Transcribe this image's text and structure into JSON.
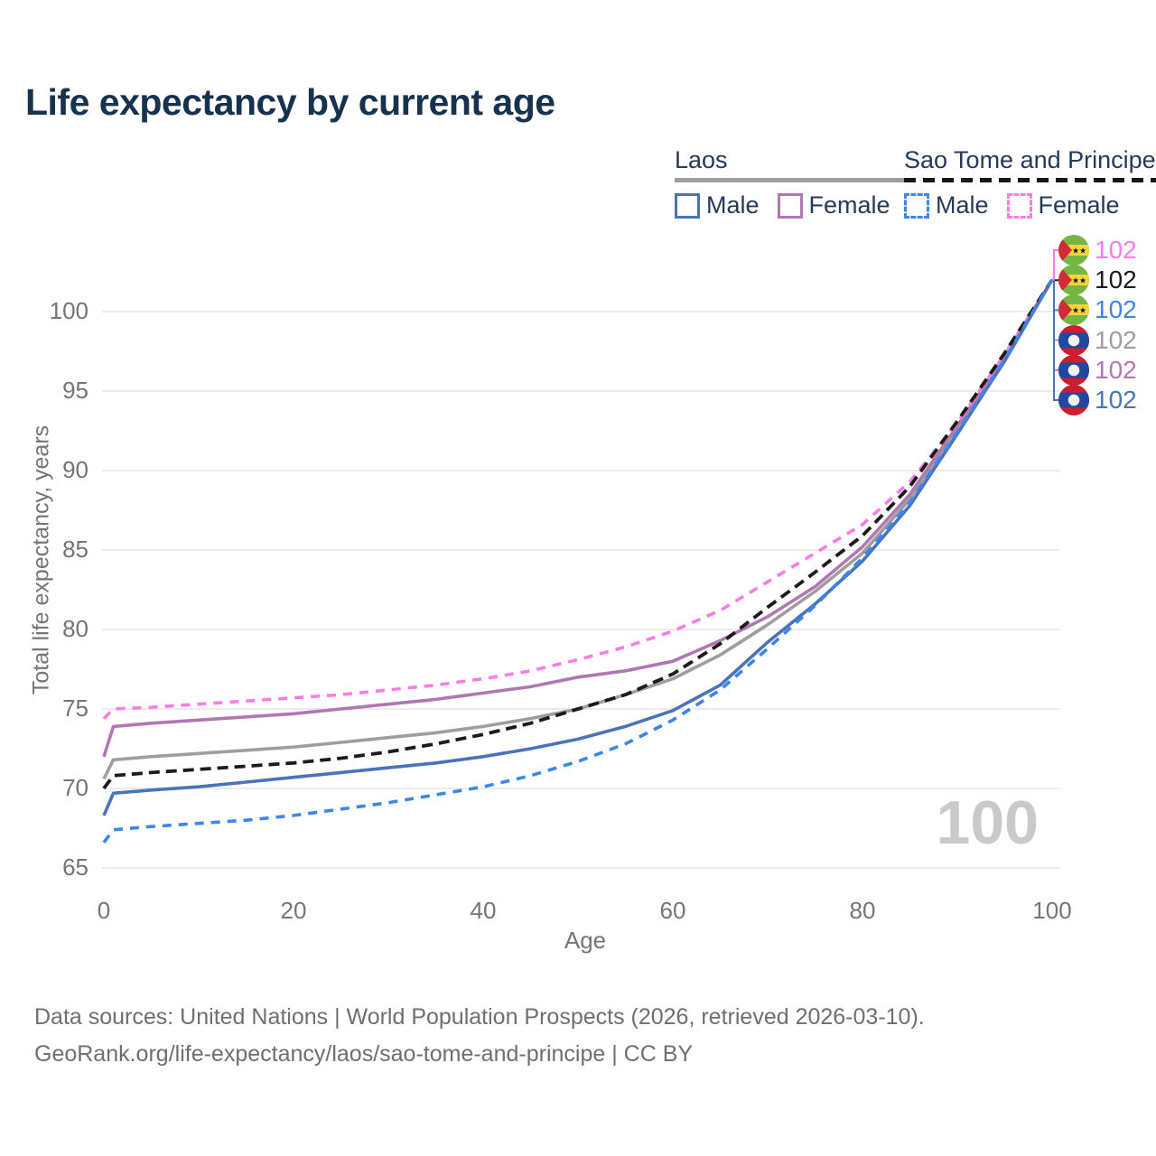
{
  "title": "Life expectancy by current age",
  "watermark": "100",
  "legend": {
    "laos": {
      "title": "Laos",
      "male_label": "Male",
      "female_label": "Female"
    },
    "sao_tome": {
      "title": "Sao Tome and Principe",
      "male_label": "Male",
      "female_label": "Female"
    }
  },
  "footer": {
    "line1": "Data sources: United Nations | World Population Prospects (2026, retrieved 2026-03-10).",
    "line2": "GeoRank.org/life-expectancy/laos/sao-tome-and-principe | CC BY"
  },
  "colors": {
    "laos_male": "#4a73b8",
    "laos_female": "#b077b3",
    "laos_all": "#9e9e9e",
    "stp_male": "#3d85e8",
    "stp_female": "#fb7ce2",
    "stp_all": "#1b1b1b",
    "title_navy": "#17324f",
    "tick_gray": "#757575",
    "watermark_gray": "#c9c9c9"
  },
  "chart_data": {
    "type": "line",
    "title": "Life expectancy by current age",
    "xlabel": "Age",
    "ylabel": "Total life expectancy, years",
    "x_ticks": [
      0,
      20,
      40,
      60,
      80,
      100
    ],
    "y_ticks": [
      65,
      70,
      75,
      80,
      85,
      90,
      95,
      100
    ],
    "xlim": [
      0,
      100
    ],
    "ylim": [
      65,
      100
    ],
    "grid": "horizontal-only",
    "legend_position": "top-right",
    "ages": [
      0,
      1,
      5,
      10,
      15,
      20,
      25,
      30,
      35,
      40,
      45,
      50,
      55,
      60,
      65,
      70,
      75,
      80,
      85,
      90,
      95,
      100
    ],
    "series": [
      {
        "id": "stp_female",
        "country": "Sao Tome and Principe",
        "sex": "Female",
        "style": "dashed",
        "color_key": "stp_female",
        "end_value": 102,
        "values": [
          74.4,
          75.0,
          75.1,
          75.3,
          75.5,
          75.7,
          75.9,
          76.2,
          76.5,
          76.9,
          77.4,
          78.1,
          78.9,
          79.9,
          81.2,
          83.0,
          84.8,
          86.6,
          89.3,
          93.0,
          97.3,
          102
        ]
      },
      {
        "id": "stp_all",
        "country": "Sao Tome and Principe",
        "sex": "Both sexes",
        "style": "dashed",
        "color_key": "stp_all",
        "end_value": 102,
        "values": [
          70.0,
          70.8,
          71.0,
          71.2,
          71.4,
          71.6,
          71.9,
          72.3,
          72.8,
          73.4,
          74.1,
          75.0,
          75.9,
          77.2,
          79.1,
          81.4,
          83.6,
          85.9,
          89.0,
          93.1,
          97.4,
          102
        ]
      },
      {
        "id": "stp_male",
        "country": "Sao Tome and Principe",
        "sex": "Male",
        "style": "dashed",
        "color_key": "stp_male",
        "end_value": 102,
        "values": [
          66.6,
          67.4,
          67.6,
          67.8,
          68.0,
          68.3,
          68.7,
          69.1,
          69.6,
          70.1,
          70.8,
          71.7,
          72.8,
          74.3,
          76.2,
          78.8,
          81.5,
          84.5,
          88.0,
          92.4,
          97.0,
          102
        ]
      },
      {
        "id": "laos_all",
        "country": "Laos",
        "sex": "Both sexes",
        "style": "solid",
        "color_key": "laos_all",
        "end_value": 102,
        "values": [
          70.6,
          71.8,
          72.0,
          72.2,
          72.4,
          72.6,
          72.9,
          73.2,
          73.5,
          73.9,
          74.4,
          75.0,
          75.9,
          76.9,
          78.4,
          80.3,
          82.4,
          84.8,
          88.2,
          92.6,
          97.1,
          102
        ]
      },
      {
        "id": "laos_female",
        "country": "Laos",
        "sex": "Female",
        "style": "solid",
        "color_key": "laos_female",
        "end_value": 102,
        "values": [
          72.0,
          73.9,
          74.1,
          74.3,
          74.5,
          74.7,
          75.0,
          75.3,
          75.6,
          76.0,
          76.4,
          77.0,
          77.4,
          78.0,
          79.3,
          80.8,
          82.7,
          85.2,
          88.5,
          92.8,
          97.2,
          102
        ]
      },
      {
        "id": "laos_male",
        "country": "Laos",
        "sex": "Male",
        "style": "solid",
        "color_key": "laos_male",
        "end_value": 102,
        "values": [
          68.3,
          69.7,
          69.9,
          70.1,
          70.4,
          70.7,
          71.0,
          71.3,
          71.6,
          72.0,
          72.5,
          73.1,
          73.9,
          74.9,
          76.5,
          79.2,
          81.6,
          84.3,
          87.8,
          92.3,
          96.9,
          102
        ]
      }
    ],
    "end_labels": [
      {
        "flag": "sao-tome",
        "value": "102",
        "color_key": "stp_female"
      },
      {
        "flag": "sao-tome",
        "value": "102",
        "color_key": "stp_all"
      },
      {
        "flag": "sao-tome",
        "value": "102",
        "color_key": "stp_male"
      },
      {
        "flag": "laos",
        "value": "102",
        "color_key": "laos_all"
      },
      {
        "flag": "laos",
        "value": "102",
        "color_key": "laos_female"
      },
      {
        "flag": "laos",
        "value": "102",
        "color_key": "laos_male"
      }
    ]
  }
}
